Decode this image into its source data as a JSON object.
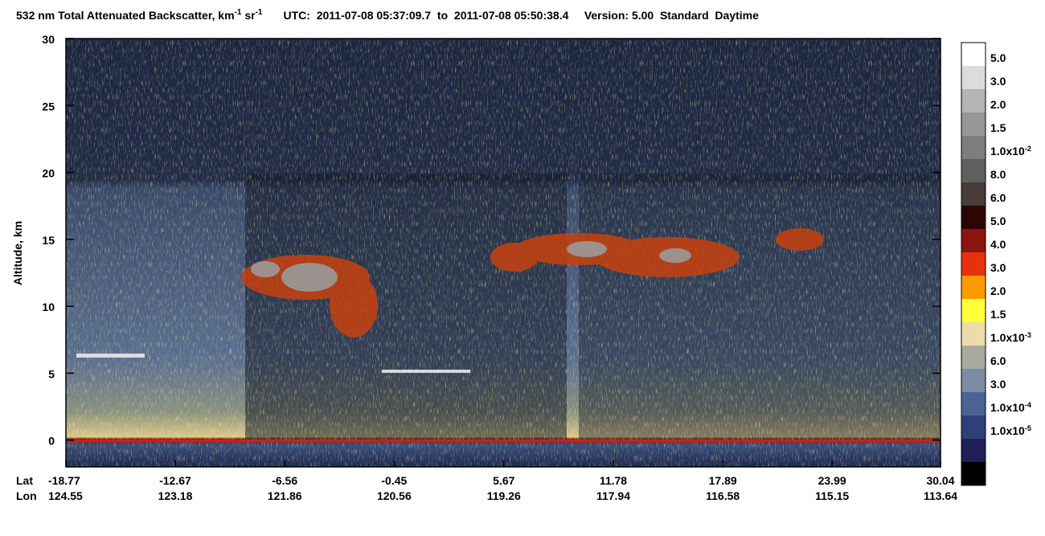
{
  "chart_data": {
    "type": "curtain",
    "title": {
      "main": "532 nm Total Attenuated Backscatter, km",
      "sup1": "-1",
      "mid": " sr",
      "sup2": "-1"
    },
    "header_info": "UTC:  2011-07-08 05:37:09.7  to  2011-07-08 05:50:38.4     Version: 5.00  Standard  Daytime",
    "y_label": "Altitude, km",
    "ylim": [
      -2,
      30
    ],
    "yticks": [
      0,
      5,
      10,
      15,
      20,
      25,
      30
    ],
    "x_row_labels": [
      "Lat",
      "Lon"
    ],
    "xlim": [
      -18.77,
      30.04
    ],
    "xticks": [
      -18.77,
      -12.67,
      -6.56,
      -0.45,
      5.67,
      11.78,
      17.89,
      23.99,
      30.04
    ],
    "lon_labels": [
      124.55,
      123.18,
      121.86,
      120.56,
      119.26,
      117.94,
      116.58,
      115.15,
      113.64
    ],
    "colorbar": {
      "colors": [
        "#ffffff",
        "#dcdcdc",
        "#b4b4b4",
        "#969696",
        "#7d7d7d",
        "#5f5f5f",
        "#463c3a",
        "#2e0505",
        "#8c1510",
        "#e8300e",
        "#ff9a00",
        "#ffff3a",
        "#ecdcaa",
        "#a8aaa0",
        "#7d8ca0",
        "#4b6496",
        "#2d4178",
        "#1e1e5a",
        "#000000"
      ],
      "labels": [
        "5.0",
        "3.0",
        "2.0",
        "1.5",
        {
          "base": "1.0x10",
          "exp": "-2"
        },
        "8.0",
        "6.0",
        "5.0",
        "4.0",
        "3.0",
        "2.0",
        "1.5",
        {
          "base": "1.0x10",
          "exp": "-3"
        },
        "6.0",
        "3.0",
        {
          "base": "1.0x10",
          "exp": "-4"
        },
        {
          "base": "1.0x10",
          "exp": "-5"
        }
      ]
    }
  }
}
